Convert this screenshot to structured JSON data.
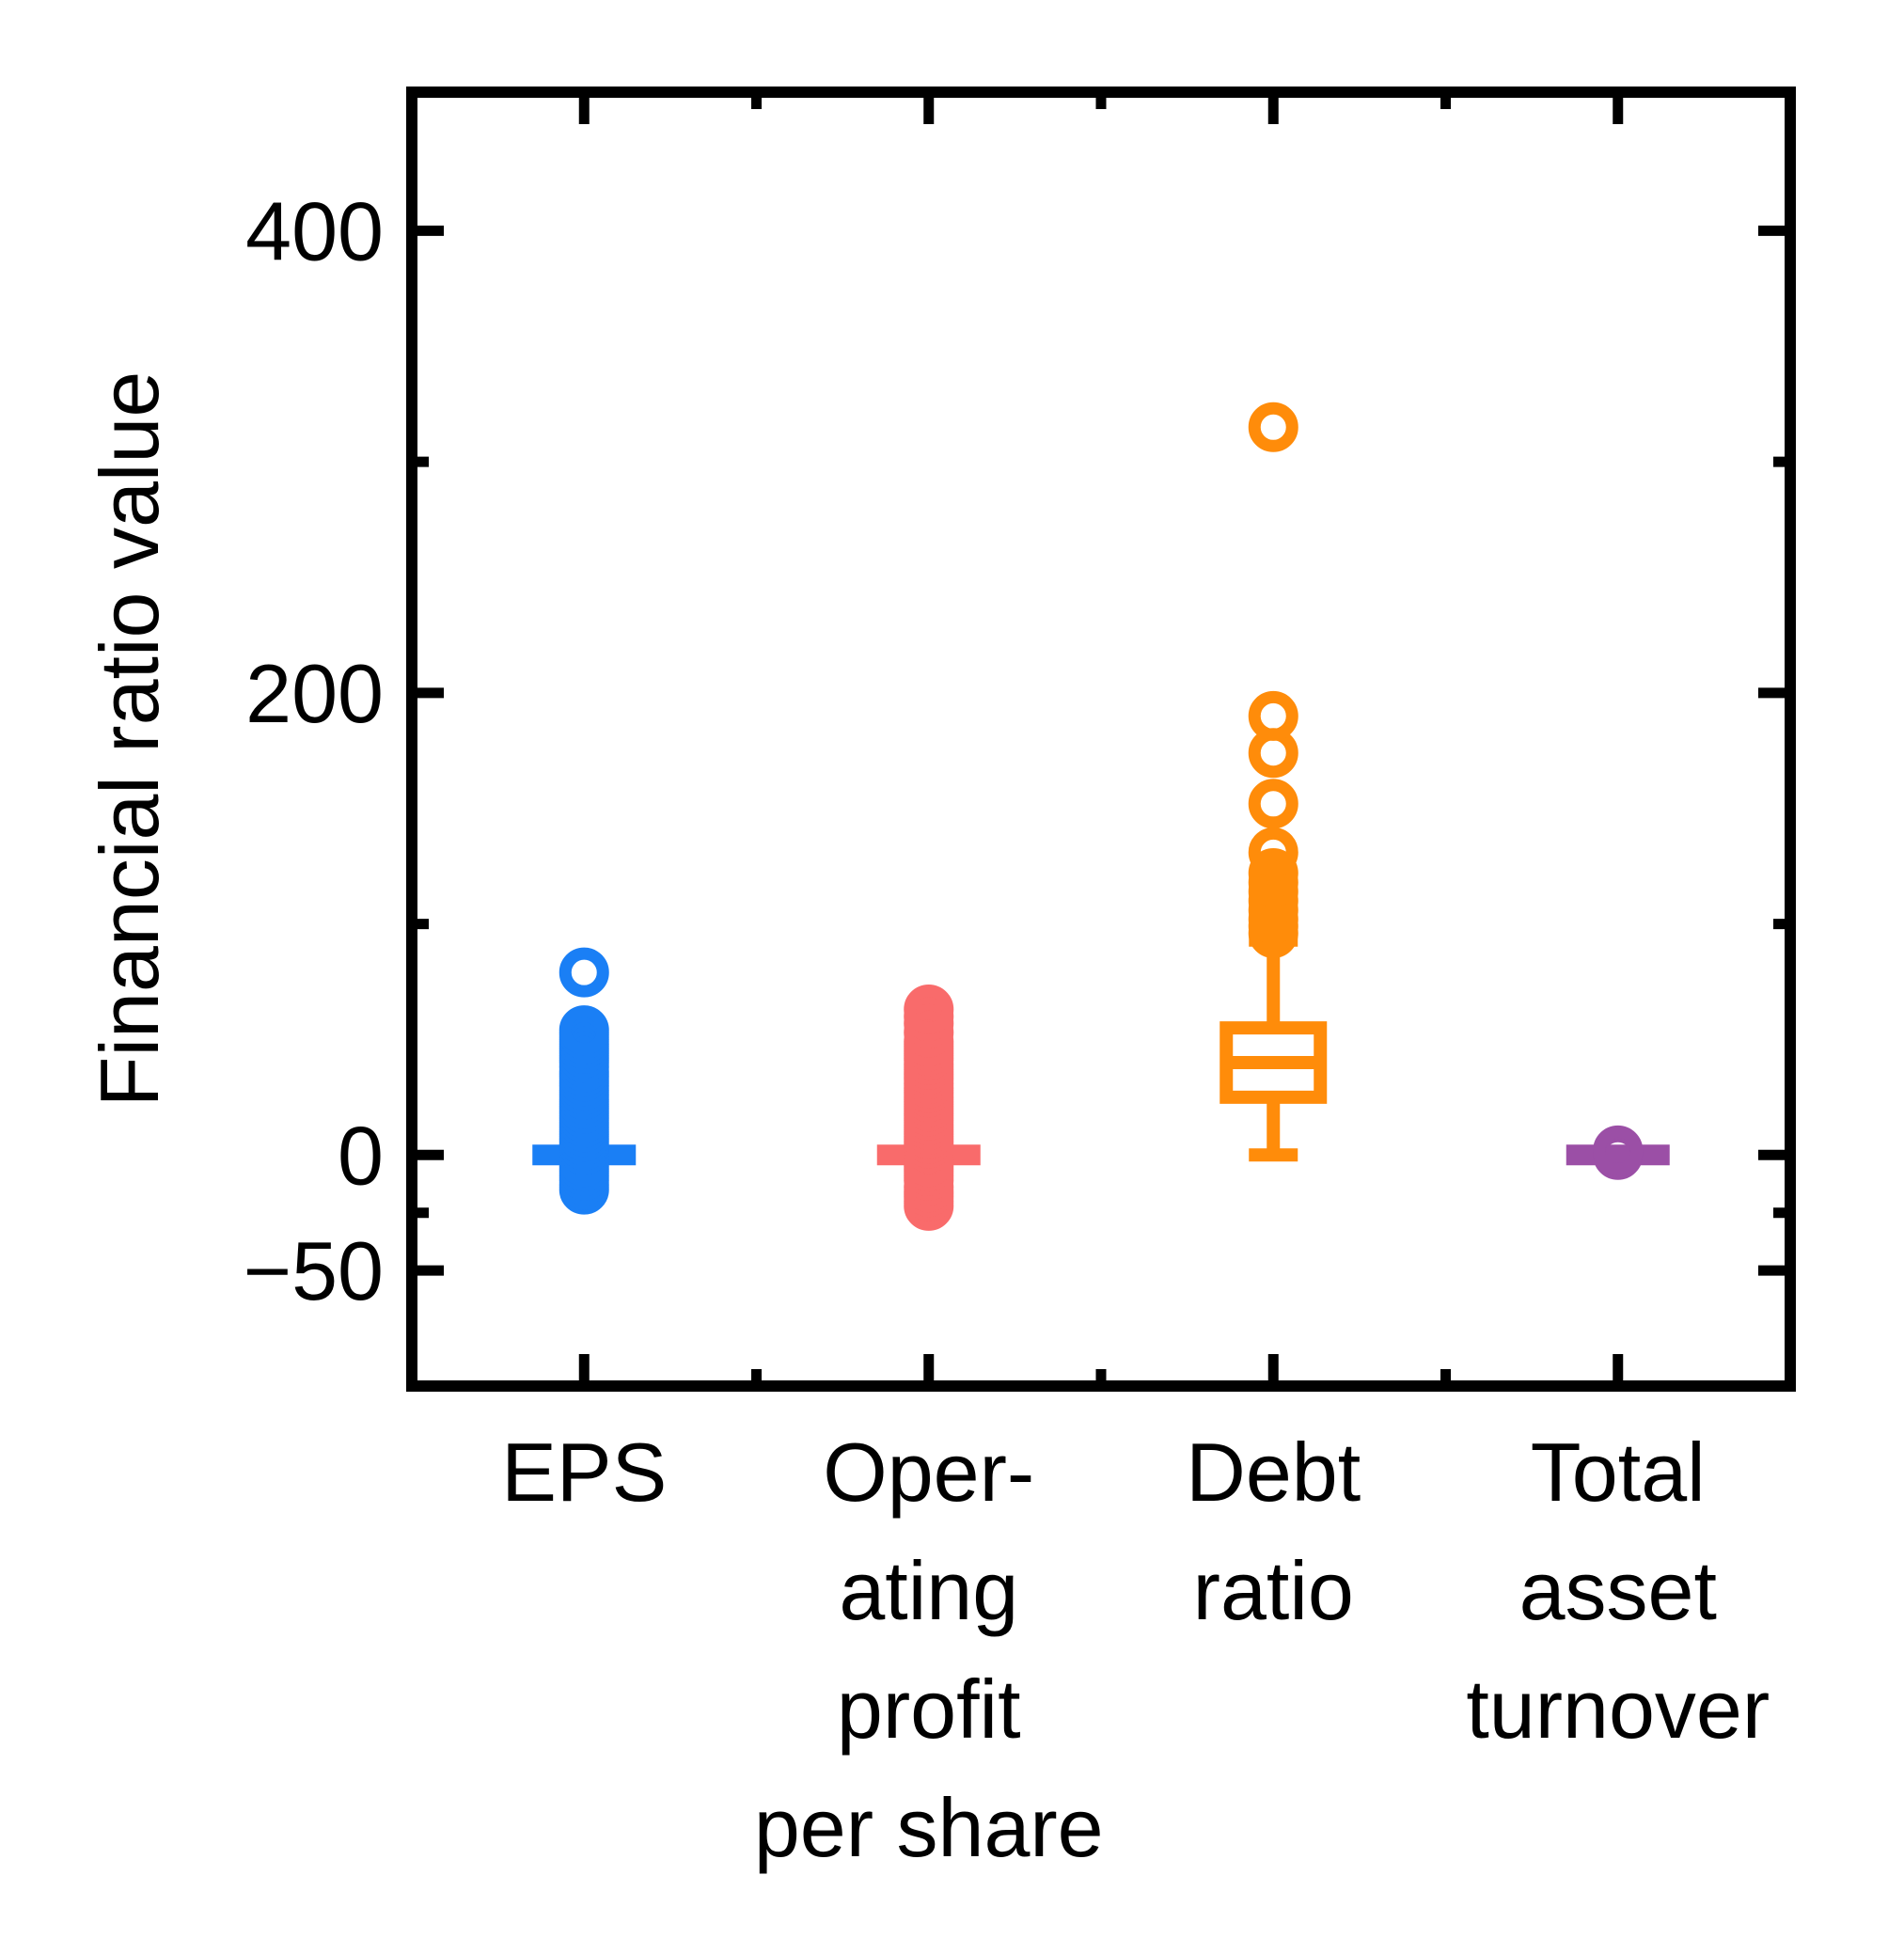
{
  "chart_data": {
    "type": "box",
    "title": "",
    "xlabel": "",
    "ylabel": "Financial ratio value",
    "ylim": [
      -100,
      460
    ],
    "yticks": [
      -50,
      0,
      200,
      400
    ],
    "ytick_labels": [
      "−50",
      "0",
      "200",
      "400"
    ],
    "grid": false,
    "legend": "none",
    "categories": [
      {
        "name": "EPS",
        "lines": [
          "EPS"
        ],
        "color": "#1A7FF5"
      },
      {
        "name": "Operating profit per share",
        "lines": [
          "Oper-",
          "ating",
          "profit",
          "per share"
        ],
        "color": "#F96B6B"
      },
      {
        "name": "Debt ratio",
        "lines": [
          "Debt",
          "ratio"
        ],
        "color": "#FF8C0A"
      },
      {
        "name": "Total asset turnover",
        "lines": [
          "Total",
          "asset",
          "turnover"
        ],
        "color": "#9B4FA6"
      }
    ],
    "boxes": [
      {
        "category": "EPS",
        "whisker_low": 0,
        "q1": 0,
        "median": 0,
        "q3": 0,
        "whisker_high": 0,
        "outliers": [
          -15,
          -13,
          -11,
          -9,
          -7,
          -5,
          -3,
          2,
          4,
          6,
          8,
          10,
          12,
          14,
          16,
          18,
          20,
          22,
          24,
          26,
          28,
          30,
          32,
          34,
          36,
          38,
          40,
          42,
          44,
          46,
          48,
          50,
          52,
          54,
          79
        ]
      },
      {
        "category": "Operating profit per share",
        "whisker_low": 0,
        "q1": 0,
        "median": 0,
        "q3": 0,
        "whisker_high": 0,
        "outliers": [
          -22,
          -20,
          -18,
          -16,
          -14,
          -11,
          -9,
          -7,
          -5,
          -3,
          3,
          5,
          7,
          9,
          11,
          13,
          15,
          17,
          19,
          21,
          23,
          25,
          27,
          29,
          31,
          33,
          35,
          37,
          39,
          41,
          43,
          45,
          47,
          49,
          53,
          57,
          60,
          63
        ]
      },
      {
        "category": "Debt ratio",
        "whisker_low": 0,
        "q1": 25,
        "median": 40,
        "q3": 55,
        "whisker_high": 93,
        "outliers": [
          96,
          99,
          102,
          106,
          110,
          114,
          118,
          122,
          131,
          152,
          174,
          190,
          315
        ]
      },
      {
        "category": "Total asset turnover",
        "whisker_low": 0,
        "q1": 0,
        "median": 0,
        "q3": 0,
        "whisker_high": 0,
        "outliers": [
          0,
          0.5,
          1,
          1.5,
          2
        ]
      }
    ]
  }
}
